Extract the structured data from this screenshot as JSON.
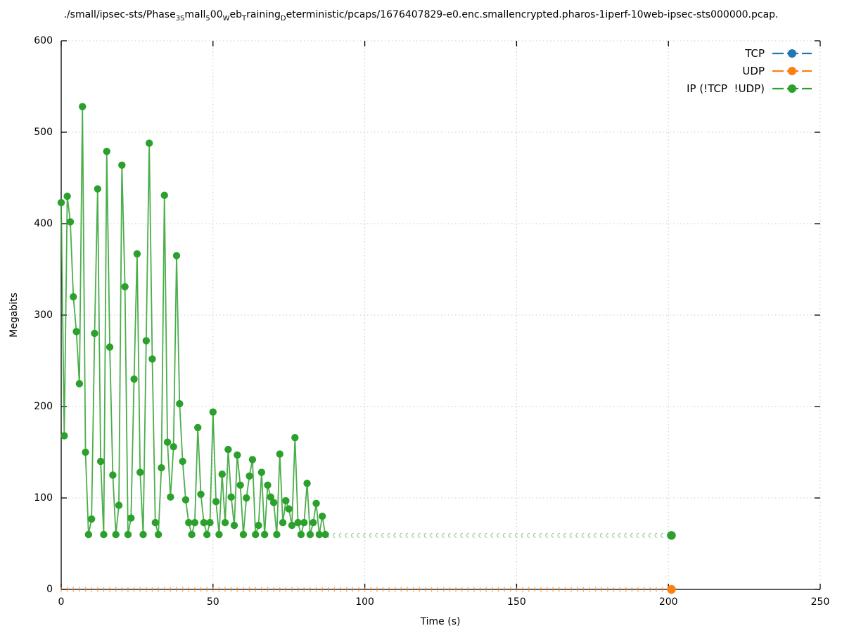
{
  "title": {
    "parts": [
      {
        "t": "./small/ipsec-sts/Phase",
        "sub": false
      },
      {
        "t": "3",
        "sub": true
      },
      {
        "t": "S",
        "sub": true
      },
      {
        "t": "mall",
        "sub": false
      },
      {
        "t": "5",
        "sub": true
      },
      {
        "t": "00",
        "sub": false
      },
      {
        "t": "W",
        "sub": true
      },
      {
        "t": "eb",
        "sub": false
      },
      {
        "t": "T",
        "sub": true
      },
      {
        "t": "raining",
        "sub": false
      },
      {
        "t": "D",
        "sub": true
      },
      {
        "t": "eterministic/pcaps/1676407829-e0.enc.smallencrypted.pharos-1iperf-10web-ipsec-sts000000.pcap.",
        "sub": false
      }
    ]
  },
  "legend": {
    "entries": [
      {
        "label": "TCP",
        "color": "#1f77b4"
      },
      {
        "label": "UDP",
        "color": "#ff7f0e"
      },
      {
        "label": "IP (!TCP  !UDP)",
        "color": "#2ca02c"
      }
    ]
  },
  "chart_data": {
    "type": "line",
    "title": "./small/ipsec-sts/Phase_3_Small_500_Web_Training_Deterministic/pcaps/1676407829-e0.enc.smallencrypted.pharos-1iperf-10web-ipsec-sts000000.pcap.",
    "xlabel": "Time (s)",
    "ylabel": "Megabits",
    "xlim": [
      0,
      250
    ],
    "ylim": [
      0,
      600
    ],
    "xticks": [
      0,
      50,
      100,
      150,
      200,
      250
    ],
    "yticks": [
      0,
      100,
      200,
      300,
      400,
      500,
      600
    ],
    "grid": true,
    "legend_position": "top-right",
    "colors": {
      "grid": "#c8c8c8",
      "axis": "#000000"
    },
    "series": [
      {
        "name": "TCP",
        "color": "#1f77b4",
        "style": "line-point",
        "points": []
      },
      {
        "name": "UDP",
        "color": "#ff7f0e",
        "style": "tiny-tick-marks",
        "tick_marks_x": [
          0,
          2,
          4,
          6,
          8,
          10,
          12,
          14,
          16,
          18,
          20,
          22,
          24,
          26,
          28,
          30,
          32,
          34,
          36,
          38,
          40,
          42,
          44,
          46,
          48,
          50,
          52,
          54,
          56,
          58,
          60,
          62,
          64,
          66,
          68,
          70,
          72,
          74,
          76,
          78,
          80,
          82,
          84,
          86,
          88,
          90,
          92,
          94,
          96,
          98,
          100,
          102,
          104,
          106,
          108,
          110,
          112,
          114,
          116,
          118,
          120,
          122,
          124,
          126,
          128,
          130,
          132,
          134,
          136,
          138,
          140,
          142,
          144,
          146,
          148,
          150,
          152,
          154,
          156,
          158,
          160,
          162,
          164,
          166,
          168,
          170,
          172,
          174,
          176,
          178,
          180,
          182,
          184,
          186,
          188,
          190,
          192,
          194,
          196,
          198,
          200
        ],
        "tick_marks_y": 0,
        "final_point": [
          201,
          0
        ]
      },
      {
        "name": "IP (!TCP  !UDP)",
        "color": "#2ca02c",
        "style": "line-point",
        "points": [
          [
            0,
            423
          ],
          [
            1,
            168
          ],
          [
            2,
            430
          ],
          [
            3,
            402
          ],
          [
            4,
            320
          ],
          [
            5,
            282
          ],
          [
            6,
            225
          ],
          [
            7,
            528
          ],
          [
            8,
            150
          ],
          [
            9,
            60
          ],
          [
            10,
            77
          ],
          [
            11,
            280
          ],
          [
            12,
            438
          ],
          [
            13,
            140
          ],
          [
            14,
            60
          ],
          [
            15,
            479
          ],
          [
            16,
            265
          ],
          [
            17,
            125
          ],
          [
            18,
            60
          ],
          [
            19,
            92
          ],
          [
            20,
            464
          ],
          [
            21,
            331
          ],
          [
            22,
            60
          ],
          [
            23,
            78
          ],
          [
            24,
            230
          ],
          [
            25,
            367
          ],
          [
            26,
            128
          ],
          [
            27,
            60
          ],
          [
            28,
            272
          ],
          [
            29,
            488
          ],
          [
            30,
            252
          ],
          [
            31,
            73
          ],
          [
            32,
            60
          ],
          [
            33,
            133
          ],
          [
            34,
            431
          ],
          [
            35,
            161
          ],
          [
            36,
            101
          ],
          [
            37,
            156
          ],
          [
            38,
            365
          ],
          [
            39,
            203
          ],
          [
            40,
            140
          ],
          [
            41,
            98
          ],
          [
            42,
            73
          ],
          [
            43,
            60
          ],
          [
            44,
            73
          ],
          [
            45,
            177
          ],
          [
            46,
            104
          ],
          [
            47,
            73
          ],
          [
            48,
            60
          ],
          [
            49,
            73
          ],
          [
            50,
            194
          ],
          [
            51,
            96
          ],
          [
            52,
            60
          ],
          [
            53,
            126
          ],
          [
            54,
            73
          ],
          [
            55,
            153
          ],
          [
            56,
            101
          ],
          [
            57,
            70
          ],
          [
            58,
            147
          ],
          [
            59,
            114
          ],
          [
            60,
            60
          ],
          [
            61,
            100
          ],
          [
            62,
            124
          ],
          [
            63,
            142
          ],
          [
            64,
            60
          ],
          [
            65,
            70
          ],
          [
            66,
            128
          ],
          [
            67,
            60
          ],
          [
            68,
            114
          ],
          [
            69,
            101
          ],
          [
            70,
            95
          ],
          [
            71,
            60
          ],
          [
            72,
            148
          ],
          [
            73,
            73
          ],
          [
            74,
            97
          ],
          [
            75,
            88
          ],
          [
            76,
            70
          ],
          [
            77,
            166
          ],
          [
            78,
            73
          ],
          [
            79,
            60
          ],
          [
            80,
            73
          ],
          [
            81,
            116
          ],
          [
            82,
            60
          ],
          [
            83,
            73
          ],
          [
            84,
            94
          ],
          [
            85,
            60
          ],
          [
            86,
            80
          ],
          [
            87,
            60
          ]
        ],
        "sparse_marks_x": [
          88,
          90,
          92,
          94,
          96,
          98,
          100,
          102,
          104,
          106,
          108,
          110,
          112,
          114,
          116,
          118,
          120,
          122,
          124,
          126,
          128,
          130,
          132,
          134,
          136,
          138,
          140,
          142,
          144,
          146,
          148,
          150,
          152,
          154,
          156,
          158,
          160,
          162,
          164,
          166,
          168,
          170,
          172,
          174,
          176,
          178,
          180,
          182,
          184,
          186,
          188,
          190,
          192,
          194,
          196,
          198,
          200
        ],
        "sparse_marks_y": 59,
        "final_point": [
          201,
          59
        ]
      }
    ]
  }
}
